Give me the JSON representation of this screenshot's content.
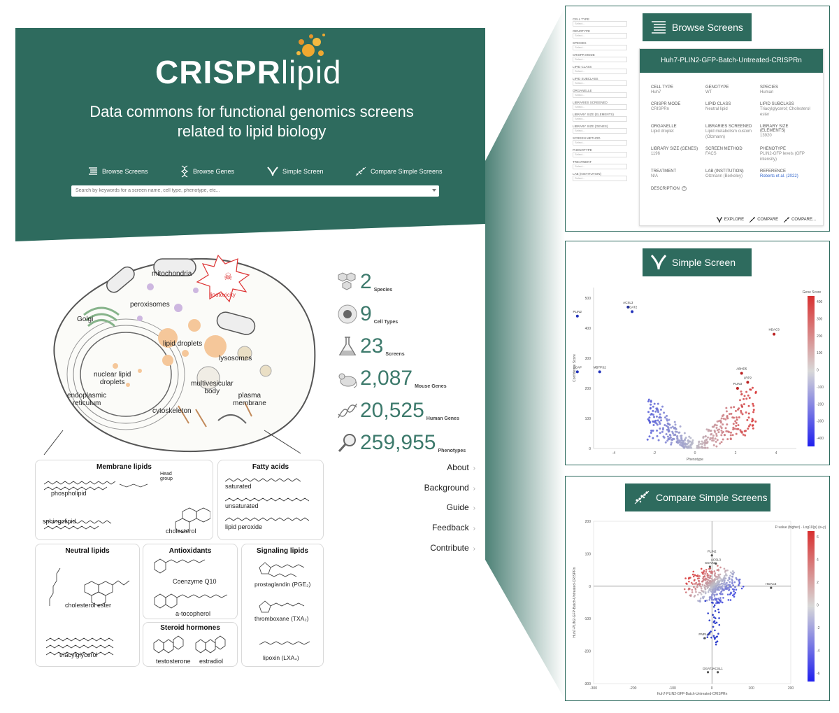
{
  "app": {
    "logo_main": "CRISPR",
    "logo_accent": "lipid",
    "tagline_line1": "Data commons for functional genomics screens",
    "tagline_line2": "related to lipid biology"
  },
  "nav": [
    {
      "label": "Browse Screens",
      "icon": "list-icon"
    },
    {
      "label": "Browse Genes",
      "icon": "dna-icon"
    },
    {
      "label": "Simple Screen",
      "icon": "volcano-icon"
    },
    {
      "label": "Compare Simple Screens",
      "icon": "scatter-icon"
    }
  ],
  "search": {
    "placeholder": "Search by keywords for a screen name, cell type, phenotype, etc..."
  },
  "cell_diagram": {
    "labels": {
      "mitochondria": "mitochondria",
      "lipotoxicity": "lipotoxicity",
      "peroxisomes": "peroxisomes",
      "golgi": "Golgi",
      "lipid_droplets": "lipid droplets",
      "lysosomes": "lysosomes",
      "nuclear": "nuclear lipid\ndroplets",
      "mvb": "multivesicular\nbody",
      "er": "endoplasmic\nreticulum",
      "plasma": "plasma\nmembrane",
      "cytoskeleton": "cytoskeleton"
    }
  },
  "lipid_classes": {
    "membrane": {
      "title": "Membrane lipids",
      "items": [
        "phospholipid",
        "sphingolipid",
        "cholesterol"
      ],
      "head_group": "Head\ngroup"
    },
    "fatty": {
      "title": "Fatty acids",
      "items": [
        "saturated",
        "unsaturated",
        "lipid peroxide"
      ]
    },
    "neutral": {
      "title": "Neutral lipids",
      "items": [
        "cholesterol ester",
        "triacylglycerol"
      ]
    },
    "antioxidants": {
      "title": "Antioxidants",
      "items": [
        "Coenzyme Q10",
        "a-tocopherol"
      ]
    },
    "steroid": {
      "title": "Steroid hormones",
      "items": [
        "testosterone",
        "estradiol"
      ]
    },
    "signaling": {
      "title": "Signaling lipids",
      "items": [
        "prostaglandin (PGE₂)",
        "thromboxane (TXA₂)",
        "lipoxin (LXA₄)"
      ]
    }
  },
  "stats": [
    {
      "value": "2",
      "label": "Species",
      "icon": "hexagon-cluster-icon"
    },
    {
      "value": "9",
      "label": "Cell Types",
      "icon": "cell-icon"
    },
    {
      "value": "23",
      "label": "Screens",
      "icon": "flask-icon"
    },
    {
      "value": "2,087",
      "label": "Mouse Genes",
      "icon": "mouse-icon"
    },
    {
      "value": "20,525",
      "label": "Human Genes",
      "icon": "dna-icon"
    },
    {
      "value": "259,955",
      "label": "Phenotypes",
      "icon": "magnifier-icon"
    }
  ],
  "footer_links": [
    "About",
    "Background",
    "Guide",
    "Feedback",
    "Contribute"
  ],
  "browse_panel": {
    "header": "Browse Screens",
    "filters": [
      "CELL TYPE",
      "GENOTYPE",
      "SPECIES",
      "CRISPR MODE",
      "LIPID CLASS",
      "LIPID SUBCLASS",
      "ORGANELLE",
      "LIBRARIES SCREENED",
      "LIBRARY SIZE (ELEMENTS)",
      "LIBRARY SIZE (GENES)",
      "SCREEN METHOD",
      "PHENOTYPE",
      "TREATMENT",
      "LAB (INSTITUTION)"
    ],
    "select_placeholder": "Select...",
    "card": {
      "title": "Huh7-PLIN2-GFP-Batch-Untreated-CRISPRn",
      "fields": [
        {
          "key": "CELL TYPE",
          "value": "Huh7"
        },
        {
          "key": "GENOTYPE",
          "value": "WT"
        },
        {
          "key": "SPECIES",
          "value": "Human"
        },
        {
          "key": "CRISPR MODE",
          "value": "CRISPRn"
        },
        {
          "key": "LIPID CLASS",
          "value": "Neutral lipid"
        },
        {
          "key": "LIPID SUBCLASS",
          "value": "Triacylglycerol; Cholesterol ester"
        },
        {
          "key": "ORGANELLE",
          "value": "Lipid droplet"
        },
        {
          "key": "LIBRARIES SCREENED",
          "value": "Lipid metabolism custom (Olzmann)"
        },
        {
          "key": "LIBRARY SIZE (ELEMENTS)",
          "value": "13920"
        },
        {
          "key": "LIBRARY SIZE (GENES)",
          "value": "1196"
        },
        {
          "key": "SCREEN METHOD",
          "value": "FACS"
        },
        {
          "key": "PHENOTYPE",
          "value": "PLIN2-GFP levels (GFP intensity)"
        },
        {
          "key": "TREATMENT",
          "value": "N/A"
        },
        {
          "key": "LAB (INSTITUTION)",
          "value": "Olzmann (Berkeley)"
        },
        {
          "key": "REFERENCE",
          "value": "Roberts et al. (2022)"
        }
      ],
      "description_label": "DESCRIPTION",
      "actions": [
        "EXPLORE",
        "COMPARE",
        "COMPARE..."
      ]
    }
  },
  "simple_panel": {
    "header": "Simple Screen",
    "ylabel": "Confidence Score",
    "xlabel": "Phenotype",
    "colorbar_title": "Gene Score",
    "colorbar_ticks": [
      "400",
      "300",
      "200",
      "100",
      "0",
      "-100",
      "-200",
      "-300",
      "-400"
    ],
    "xticks": [
      "-4",
      "-2",
      "0",
      "2",
      "4"
    ],
    "yticks": [
      "500",
      "400",
      "300",
      "200",
      "100",
      "0"
    ],
    "annotations": [
      "ACSL3",
      "SOAT2",
      "PLIN2",
      "HDAC3",
      "SCAP",
      "MBTPS2",
      "ABHD5",
      "LRP2",
      "PLIN3"
    ]
  },
  "compare_panel": {
    "header": "Compare Simple Screens",
    "ylabel": "Huh7-PLIN2-GFP-Batch-Untreated-CRISPRn",
    "xlabel": "Huh7-PLIN2-GFP-Batch-Untreated-CRISPRn",
    "colorbar_title": "P-value (higher) · Log10(p) (x+y)",
    "colorbar_ticks": [
      "6",
      "4",
      "2",
      "0",
      "-2",
      "-4",
      "-6"
    ],
    "xticks": [
      "-300",
      "-200",
      "-100",
      "0",
      "100",
      "200"
    ],
    "yticks": [
      "200",
      "100",
      "0",
      "-100",
      "-200",
      "-300"
    ],
    "annotations": [
      "PLIN2",
      "ACSL3",
      "SOAT2",
      "PNPLA2",
      "DGAT2",
      "ACSL1",
      "HDAC3"
    ]
  },
  "colors": {
    "brand": "#2e6b5e",
    "stat": "#3d7a6c",
    "accent_orange": "#f0a830",
    "lipotox": "#d33333"
  }
}
